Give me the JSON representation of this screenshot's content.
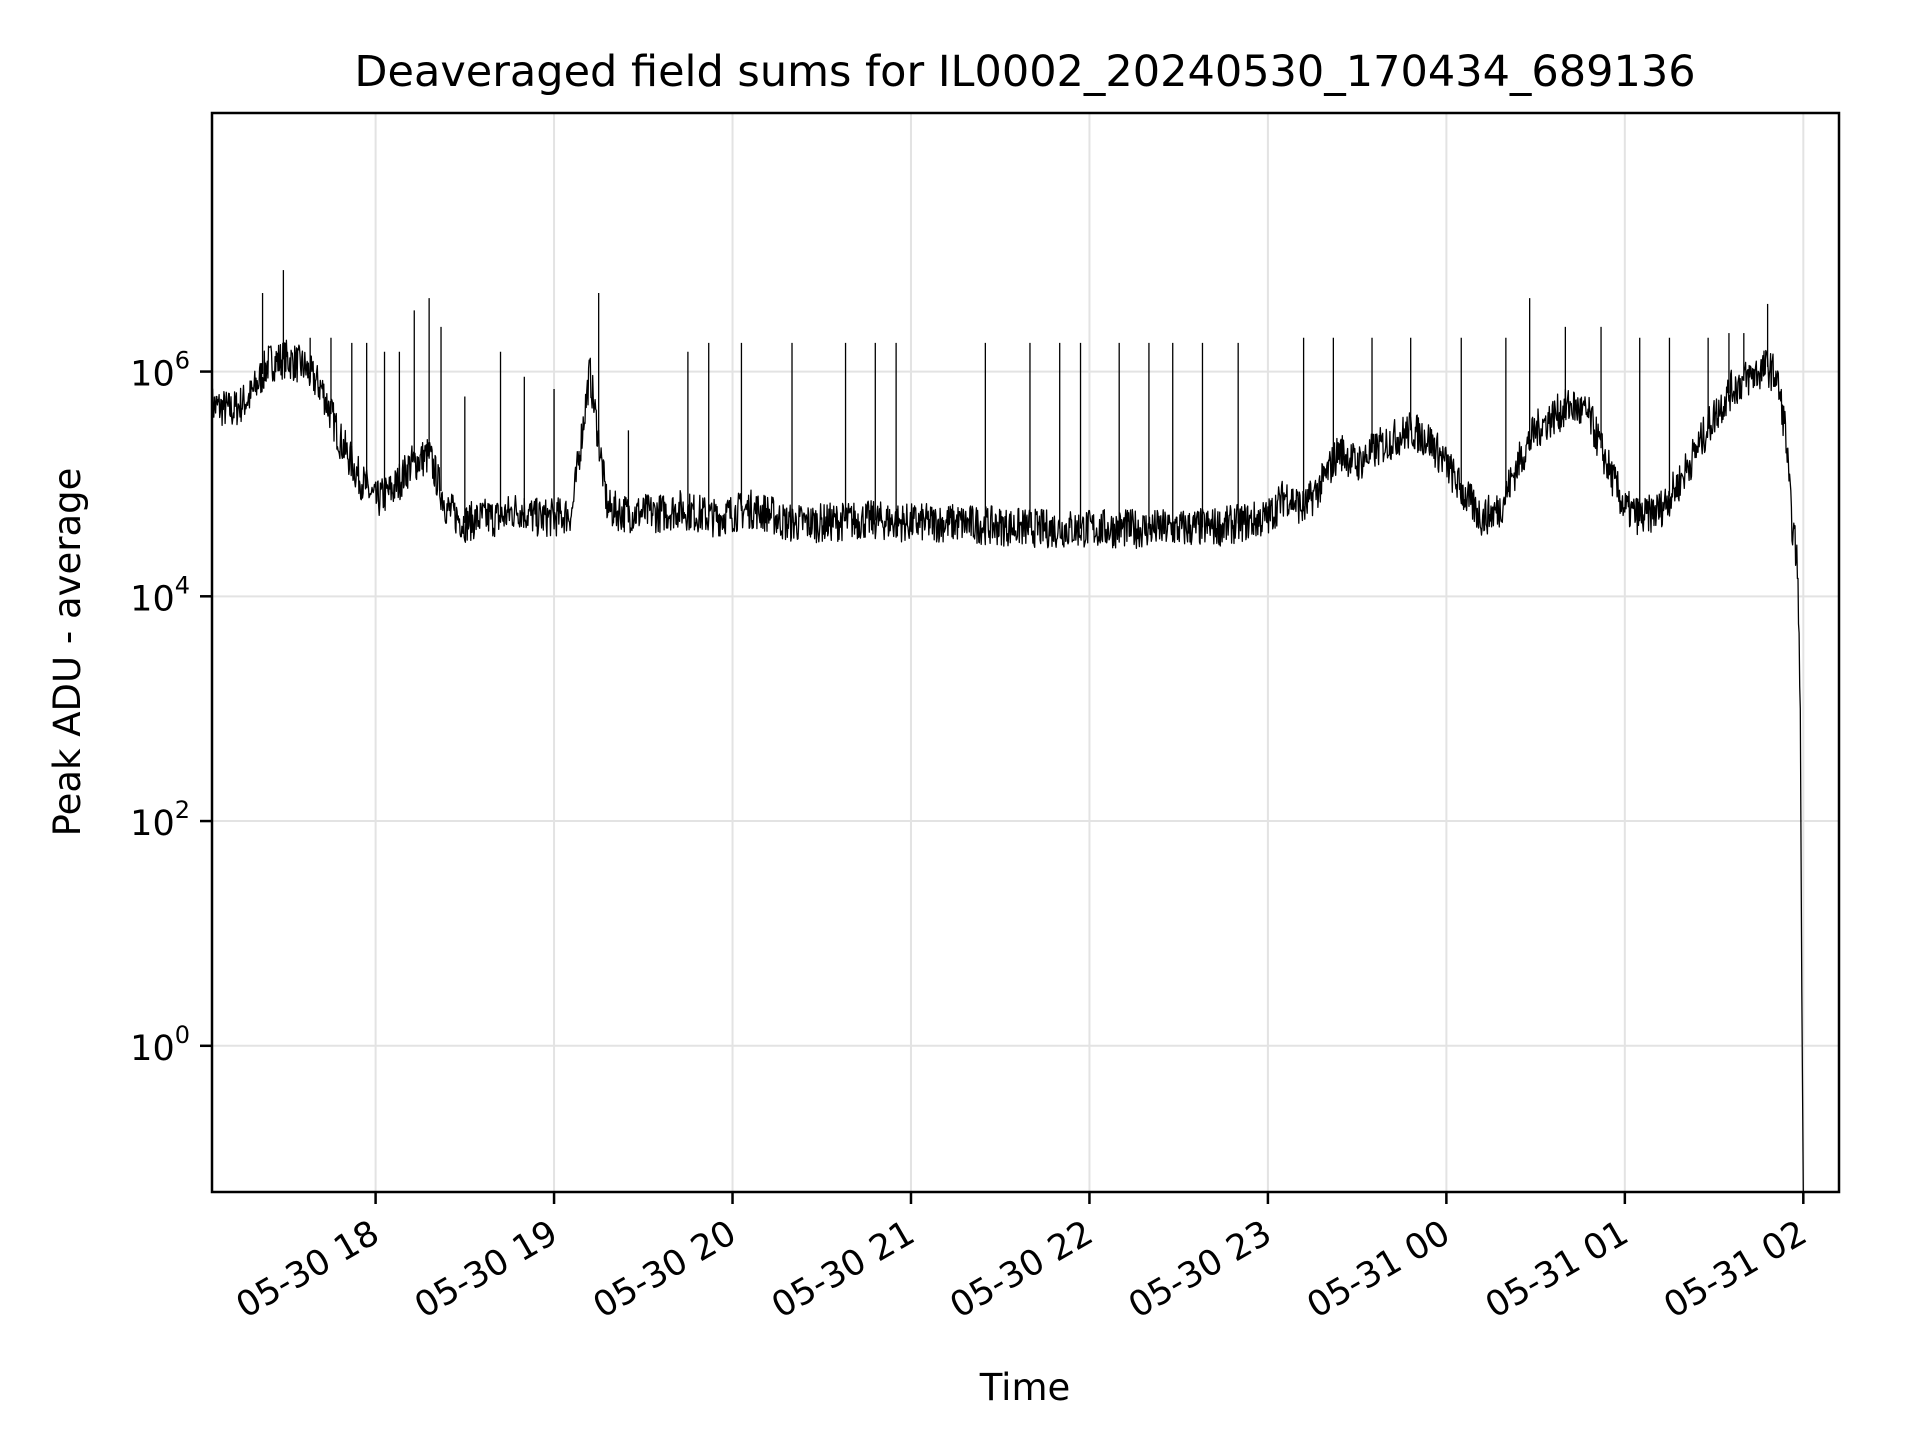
{
  "chart_data": {
    "type": "line",
    "title": "Deaveraged field sums for IL0002_20240530_170434_689136",
    "xlabel": "Time",
    "ylabel": "Peak ADU - average",
    "yscale": "log",
    "grid": true,
    "x_range": [
      "2024-05-30T17:05:00",
      "2024-05-31T02:12:00"
    ],
    "ylim": [
      0.05,
      200000000
    ],
    "x_ticks": [
      {
        "time": "2024-05-30T18:00:00",
        "label": "05-30 18"
      },
      {
        "time": "2024-05-30T19:00:00",
        "label": "05-30 19"
      },
      {
        "time": "2024-05-30T20:00:00",
        "label": "05-30 20"
      },
      {
        "time": "2024-05-30T21:00:00",
        "label": "05-30 21"
      },
      {
        "time": "2024-05-30T22:00:00",
        "label": "05-30 22"
      },
      {
        "time": "2024-05-30T23:00:00",
        "label": "05-30 23"
      },
      {
        "time": "2024-05-31T00:00:00",
        "label": "05-31 00"
      },
      {
        "time": "2024-05-31T01:00:00",
        "label": "05-31 01"
      },
      {
        "time": "2024-05-31T02:00:00",
        "label": "05-31 02"
      }
    ],
    "y_ticks": [
      {
        "value": 1,
        "base": "10",
        "exp": "0"
      },
      {
        "value": 100,
        "base": "10",
        "exp": "2"
      },
      {
        "value": 10000,
        "base": "10",
        "exp": "4"
      },
      {
        "value": 1000000,
        "base": "10",
        "exp": "6"
      }
    ],
    "series": [
      {
        "color": "#000000",
        "points": [
          [
            "2024-05-30T17:05:00",
            500000
          ],
          [
            "2024-05-30T17:12:00",
            450000
          ],
          [
            "2024-05-30T17:18:00",
            600000
          ],
          [
            "2024-05-30T17:24:00",
            1200000
          ],
          [
            "2024-05-30T17:30:00",
            1300000
          ],
          [
            "2024-05-30T17:36:00",
            1100000
          ],
          [
            "2024-05-30T17:42:00",
            700000
          ],
          [
            "2024-05-30T17:48:00",
            250000
          ],
          [
            "2024-05-30T17:54:00",
            120000
          ],
          [
            "2024-05-30T18:00:00",
            70000
          ],
          [
            "2024-05-30T18:06:00",
            90000
          ],
          [
            "2024-05-30T18:12:00",
            150000
          ],
          [
            "2024-05-30T18:18:00",
            180000
          ],
          [
            "2024-05-30T18:24:00",
            60000
          ],
          [
            "2024-05-30T18:30:00",
            45000
          ],
          [
            "2024-05-30T18:36:00",
            50000
          ],
          [
            "2024-05-30T18:42:00",
            50000
          ],
          [
            "2024-05-30T18:48:00",
            60000
          ],
          [
            "2024-05-30T18:54:00",
            50000
          ],
          [
            "2024-05-30T19:00:00",
            50000
          ],
          [
            "2024-05-30T19:06:00",
            55000
          ],
          [
            "2024-05-30T19:12:00",
            1000000
          ],
          [
            "2024-05-30T19:18:00",
            60000
          ],
          [
            "2024-05-30T19:24:00",
            55000
          ],
          [
            "2024-05-30T19:30:00",
            55000
          ],
          [
            "2024-05-30T19:36:00",
            55000
          ],
          [
            "2024-05-30T19:42:00",
            60000
          ],
          [
            "2024-05-30T19:48:00",
            55000
          ],
          [
            "2024-05-30T19:54:00",
            50000
          ],
          [
            "2024-05-30T20:00:00",
            55000
          ],
          [
            "2024-05-30T20:06:00",
            60000
          ],
          [
            "2024-05-30T20:12:00",
            55000
          ],
          [
            "2024-05-30T20:18:00",
            45000
          ],
          [
            "2024-05-30T20:30:00",
            45000
          ],
          [
            "2024-05-30T20:45:00",
            48000
          ],
          [
            "2024-05-30T21:00:00",
            45000
          ],
          [
            "2024-05-30T21:15:00",
            45000
          ],
          [
            "2024-05-30T21:30:00",
            42000
          ],
          [
            "2024-05-30T21:45:00",
            40000
          ],
          [
            "2024-05-30T22:00:00",
            40000
          ],
          [
            "2024-05-30T22:15:00",
            40000
          ],
          [
            "2024-05-30T22:30:00",
            40000
          ],
          [
            "2024-05-30T22:45:00",
            42000
          ],
          [
            "2024-05-30T23:00:00",
            50000
          ],
          [
            "2024-05-30T23:06:00",
            80000
          ],
          [
            "2024-05-30T23:12:00",
            60000
          ],
          [
            "2024-05-30T23:18:00",
            100000
          ],
          [
            "2024-05-30T23:24:00",
            200000
          ],
          [
            "2024-05-30T23:30:00",
            150000
          ],
          [
            "2024-05-30T23:36:00",
            200000
          ],
          [
            "2024-05-30T23:42:00",
            250000
          ],
          [
            "2024-05-30T23:48:00",
            300000
          ],
          [
            "2024-05-30T23:54:00",
            250000
          ],
          [
            "2024-05-31T00:00:00",
            150000
          ],
          [
            "2024-05-31T00:06:00",
            80000
          ],
          [
            "2024-05-31T00:12:00",
            50000
          ],
          [
            "2024-05-31T00:18:00",
            60000
          ],
          [
            "2024-05-31T00:24:00",
            150000
          ],
          [
            "2024-05-31T00:30:00",
            300000
          ],
          [
            "2024-05-31T00:36:00",
            400000
          ],
          [
            "2024-05-31T00:42:00",
            500000
          ],
          [
            "2024-05-31T00:48:00",
            400000
          ],
          [
            "2024-05-31T00:54:00",
            150000
          ],
          [
            "2024-05-31T01:00:00",
            60000
          ],
          [
            "2024-05-31T01:06:00",
            50000
          ],
          [
            "2024-05-31T01:12:00",
            60000
          ],
          [
            "2024-05-31T01:18:00",
            100000
          ],
          [
            "2024-05-31T01:24:00",
            200000
          ],
          [
            "2024-05-31T01:30:00",
            400000
          ],
          [
            "2024-05-31T01:36:00",
            700000
          ],
          [
            "2024-05-31T01:42:00",
            900000
          ],
          [
            "2024-05-31T01:48:00",
            1100000
          ],
          [
            "2024-05-31T01:51:00",
            900000
          ],
          [
            "2024-05-31T01:54:00",
            300000
          ],
          [
            "2024-05-31T01:56:00",
            50000
          ],
          [
            "2024-05-31T01:58:00",
            20000
          ],
          [
            "2024-05-31T01:59:00",
            1000
          ],
          [
            "2024-05-31T01:59:30",
            3
          ],
          [
            "2024-05-31T02:00:00",
            0.05
          ]
        ],
        "spikes": [
          [
            "2024-05-30T17:22:00",
            5000000
          ],
          [
            "2024-05-30T17:29:00",
            8000000
          ],
          [
            "2024-05-30T17:38:00",
            2000000
          ],
          [
            "2024-05-30T17:45:00",
            2000000
          ],
          [
            "2024-05-30T17:52:00",
            1800000
          ],
          [
            "2024-05-30T17:57:00",
            1800000
          ],
          [
            "2024-05-30T18:03:00",
            1500000
          ],
          [
            "2024-05-30T18:08:00",
            1500000
          ],
          [
            "2024-05-30T18:13:00",
            3500000
          ],
          [
            "2024-05-30T18:18:00",
            4500000
          ],
          [
            "2024-05-30T18:22:00",
            2500000
          ],
          [
            "2024-05-30T18:30:00",
            600000
          ],
          [
            "2024-05-30T18:42:00",
            1500000
          ],
          [
            "2024-05-30T18:50:00",
            900000
          ],
          [
            "2024-05-30T19:00:00",
            700000
          ],
          [
            "2024-05-30T19:15:00",
            5000000
          ],
          [
            "2024-05-30T19:25:00",
            300000
          ],
          [
            "2024-05-30T19:45:00",
            1500000
          ],
          [
            "2024-05-30T19:52:00",
            1800000
          ],
          [
            "2024-05-30T20:03:00",
            1800000
          ],
          [
            "2024-05-30T20:20:00",
            1800000
          ],
          [
            "2024-05-30T20:38:00",
            1800000
          ],
          [
            "2024-05-30T20:48:00",
            1800000
          ],
          [
            "2024-05-30T20:55:00",
            1800000
          ],
          [
            "2024-05-30T21:25:00",
            1800000
          ],
          [
            "2024-05-30T21:40:00",
            1800000
          ],
          [
            "2024-05-30T21:50:00",
            1800000
          ],
          [
            "2024-05-30T21:57:00",
            1800000
          ],
          [
            "2024-05-30T22:10:00",
            1800000
          ],
          [
            "2024-05-30T22:20:00",
            1800000
          ],
          [
            "2024-05-30T22:28:00",
            1800000
          ],
          [
            "2024-05-30T22:38:00",
            1800000
          ],
          [
            "2024-05-30T22:50:00",
            1800000
          ],
          [
            "2024-05-30T23:12:00",
            2000000
          ],
          [
            "2024-05-30T23:22:00",
            2000000
          ],
          [
            "2024-05-30T23:35:00",
            2000000
          ],
          [
            "2024-05-30T23:48:00",
            2000000
          ],
          [
            "2024-05-31T00:05:00",
            2000000
          ],
          [
            "2024-05-31T00:20:00",
            2000000
          ],
          [
            "2024-05-31T00:28:00",
            4500000
          ],
          [
            "2024-05-31T00:40:00",
            2500000
          ],
          [
            "2024-05-31T00:52:00",
            2500000
          ],
          [
            "2024-05-31T01:05:00",
            2000000
          ],
          [
            "2024-05-31T01:15:00",
            2000000
          ],
          [
            "2024-05-31T01:28:00",
            2000000
          ],
          [
            "2024-05-31T01:35:00",
            2200000
          ],
          [
            "2024-05-31T01:40:00",
            2200000
          ],
          [
            "2024-05-31T01:48:00",
            4000000
          ]
        ]
      }
    ]
  }
}
